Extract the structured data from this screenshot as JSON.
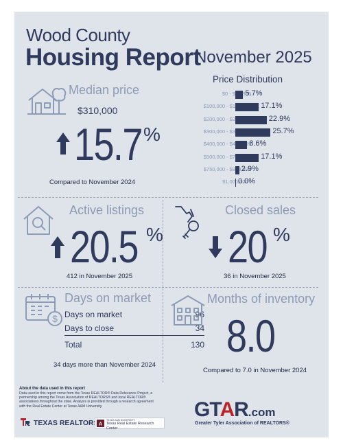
{
  "header": {
    "title_line1": "Wood County",
    "title_line2": "Housing Report",
    "month": "November 2025"
  },
  "price_distribution": {
    "title": "Price Distribution",
    "rows": [
      {
        "label": "$0 - $99,999",
        "value": "5.7%",
        "pct": 5.7
      },
      {
        "label": "$100,000 - $199,999",
        "value": "17.1%",
        "pct": 17.1
      },
      {
        "label": "$200,000 - $299,999",
        "value": "22.9%",
        "pct": 22.9
      },
      {
        "label": "$300,000 - $399,999",
        "value": "25.7%",
        "pct": 25.7
      },
      {
        "label": "$400,000 - $499,999",
        "value": "8.6%",
        "pct": 8.6
      },
      {
        "label": "$500,000 - $749,999",
        "value": "17.1%",
        "pct": 17.1
      },
      {
        "label": "$750,000 - $999,999",
        "value": "2.9%",
        "pct": 2.9
      },
      {
        "label": "$1,000,000+",
        "value": "0.0%",
        "pct": 0.0
      }
    ]
  },
  "median_price": {
    "heading": "Median price",
    "value": "$310,000",
    "change": "15.7",
    "pct_sign": "%",
    "note": "Compared to November 2024",
    "icon": "house-tree-icon"
  },
  "active_listings": {
    "heading": "Active listings",
    "change": "20.5",
    "pct_sign": "%",
    "note": "412 in November 2025",
    "icon": "house-search-icon"
  },
  "closed_sales": {
    "heading": "Closed sales",
    "change": "20",
    "pct_sign": "%",
    "note": "36 in November 2025",
    "icon": "key-hand-icon"
  },
  "days_on_market": {
    "heading": "Days on market",
    "rows": [
      {
        "label": "Days on market",
        "value": "96"
      },
      {
        "label": "Days to close",
        "value": "34"
      }
    ],
    "total_label": "Total",
    "total_value": "130",
    "note": "34 days more than November 2024",
    "icon": "calendar-dollar-icon"
  },
  "months_inventory": {
    "heading": "Months of inventory",
    "value": "8.0",
    "note": "Compared to 7.0 in November 2024",
    "icon": "building-icon"
  },
  "footer": {
    "about_title": "About the data used in this report",
    "about_body": "Data used in this report come from the Texas REALTOR® Data Relevance Project, a partnership among the Texas Association of REALTORS® and local REALTOR® associations throughout the state. Analysis is provided through a research agreement with the Real Estate Center at Texas A&M University.",
    "texas_realtors": "TEXAS REALTORS",
    "tamu_small": "TEXAS A&M UNIVERSITY",
    "tamu_center": "Texas Real Estate Research Center",
    "gtar_main": "GTAR",
    "gtar_com": ".com",
    "gtar_sub": "Greater Tyler Association of REALTORS®"
  },
  "colors": {
    "background": "#dfe3ea",
    "navy": "#2f3a5c",
    "accent": "#8c9bb6",
    "brand_red": "#b8242a"
  }
}
